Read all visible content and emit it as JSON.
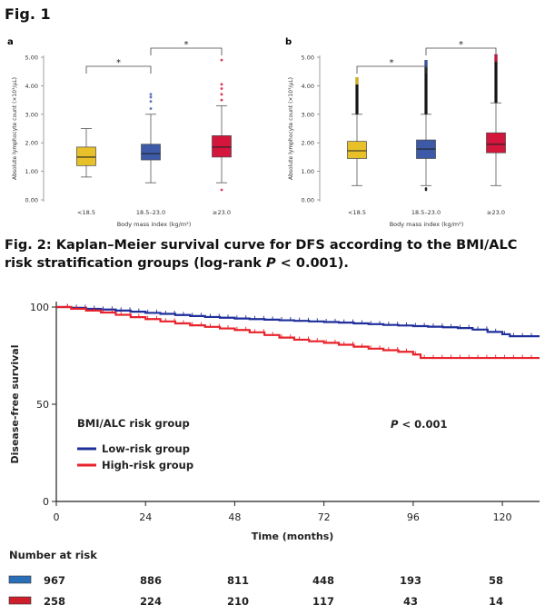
{
  "fig1": {
    "title": "Fig. 1",
    "panels": [
      {
        "label": "a"
      },
      {
        "label": "b"
      }
    ]
  },
  "fig2": {
    "title_main": "Fig. 2: Kaplan–Meier survival curve for DFS according to the BMI/ALC risk stratification groups (log-rank ",
    "title_p": "P",
    "title_tail": " <  0.001)."
  },
  "chart_data": [
    {
      "id": "fig1a",
      "type": "box",
      "panel": "a",
      "xlabel": "Body mass index (kg/m²)",
      "ylabel": "Absolute lymphocyte count (×10³/μL)",
      "ylim": [
        0,
        5
      ],
      "yticks": [
        "0.00",
        "1.00",
        "2.00",
        "3.00",
        "4.00",
        "5.00"
      ],
      "categories": [
        "<18.5",
        "18.5–23.0",
        "≥23.0"
      ],
      "colors": [
        "#e8c12a",
        "#3d5aa8",
        "#d4163c"
      ],
      "boxes": [
        {
          "q1": 1.2,
          "median": 1.5,
          "q3": 1.85,
          "whisker_low": 0.8,
          "whisker_high": 2.5,
          "outliers": []
        },
        {
          "q1": 1.4,
          "median": 1.62,
          "q3": 1.95,
          "whisker_low": 0.6,
          "whisker_high": 3.0,
          "outliers": [
            3.2,
            3.45,
            3.6,
            3.7
          ]
        },
        {
          "q1": 1.5,
          "median": 1.85,
          "q3": 2.25,
          "whisker_low": 0.6,
          "whisker_high": 3.3,
          "outliers": [
            0.35,
            3.5,
            3.7,
            3.9,
            4.05,
            4.9
          ]
        }
      ],
      "significance": [
        {
          "from": 0,
          "to": 1,
          "label": "*"
        },
        {
          "from": 1,
          "to": 2,
          "label": "*"
        }
      ]
    },
    {
      "id": "fig1b",
      "type": "box",
      "panel": "b",
      "xlabel": "Body mass index (kg/m²)",
      "ylabel": "Absolute lymphocyte count (×10³/μL)",
      "ylim": [
        0,
        5
      ],
      "yticks": [
        "0.00",
        "1.00",
        "2.00",
        "3.00",
        "4.00",
        "5.00"
      ],
      "categories": [
        "<18.5",
        "18.5–23.0",
        "≥23.0"
      ],
      "colors": [
        "#e8c12a",
        "#3d5aa8",
        "#d4163c"
      ],
      "boxes": [
        {
          "q1": 1.45,
          "median": 1.72,
          "q3": 2.05,
          "whisker_low": 0.5,
          "whisker_high": 3.0,
          "outliers_from": 3.0,
          "outliers_to": 4.3
        },
        {
          "q1": 1.45,
          "median": 1.78,
          "q3": 2.1,
          "whisker_low": 0.5,
          "whisker_high": 3.0,
          "outliers_from": 3.0,
          "outliers_to": 4.9,
          "low_outliers": [
            0.35,
            0.4
          ]
        },
        {
          "q1": 1.65,
          "median": 1.95,
          "q3": 2.35,
          "whisker_low": 0.5,
          "whisker_high": 3.4,
          "outliers_from": 3.4,
          "outliers_to": 5.1
        }
      ],
      "significance": [
        {
          "from": 0,
          "to": 1,
          "label": "*"
        },
        {
          "from": 1,
          "to": 2,
          "label": "*"
        }
      ]
    },
    {
      "id": "fig2",
      "type": "line",
      "subtype": "kaplan-meier",
      "xlabel": "Time (months)",
      "ylabel": "Disease-free survival",
      "xlim": [
        0,
        130
      ],
      "ylim": [
        0,
        100
      ],
      "xticks": [
        0,
        24,
        48,
        72,
        96,
        120
      ],
      "yticks": [
        0,
        50,
        100
      ],
      "legend_title": "BMI/ALC risk group",
      "annotation_p": "P",
      "annotation_rest": " < 0.001",
      "series": [
        {
          "name": "Low-risk group",
          "color": "#1f2f9a",
          "x": [
            0,
            4,
            8,
            12,
            16,
            20,
            24,
            28,
            32,
            36,
            40,
            44,
            48,
            52,
            56,
            60,
            64,
            68,
            72,
            76,
            80,
            84,
            88,
            92,
            96,
            100,
            104,
            108,
            112,
            116,
            120,
            122,
            126,
            130
          ],
          "y": [
            100,
            99.6,
            99.1,
            98.7,
            98.2,
            97.6,
            97.0,
            96.5,
            95.9,
            95.4,
            94.9,
            94.5,
            94.1,
            93.8,
            93.5,
            93.2,
            92.9,
            92.6,
            92.3,
            92.0,
            91.6,
            91.2,
            90.8,
            90.5,
            90.2,
            89.9,
            89.6,
            89.2,
            88.4,
            87.2,
            86.0,
            85.0,
            85.0,
            85.0
          ]
        },
        {
          "name": "High-risk group",
          "color": "#e8232b",
          "x": [
            0,
            4,
            8,
            12,
            16,
            20,
            24,
            28,
            32,
            36,
            40,
            44,
            48,
            52,
            56,
            60,
            64,
            68,
            72,
            76,
            80,
            84,
            88,
            92,
            96,
            98,
            100,
            104,
            108,
            112,
            116,
            120,
            126,
            130
          ],
          "y": [
            100,
            99.1,
            98.2,
            97.2,
            96.0,
            94.8,
            93.8,
            92.6,
            91.6,
            90.6,
            89.8,
            89.0,
            88.2,
            87.0,
            85.6,
            84.3,
            83.2,
            82.4,
            81.6,
            80.6,
            79.6,
            78.6,
            77.8,
            77.0,
            75.6,
            73.8,
            73.8,
            73.8,
            73.8,
            73.8,
            73.8,
            73.8,
            73.8,
            73.8
          ]
        }
      ],
      "risk_table": {
        "title": "Number at risk",
        "rows": [
          {
            "color": "#2b6fb8",
            "values": [
              "967",
              "886",
              "811",
              "448",
              "193",
              "58"
            ]
          },
          {
            "color": "#cc1f2b",
            "values": [
              "258",
              "224",
              "210",
              "117",
              "43",
              "14"
            ]
          }
        ]
      }
    }
  ]
}
